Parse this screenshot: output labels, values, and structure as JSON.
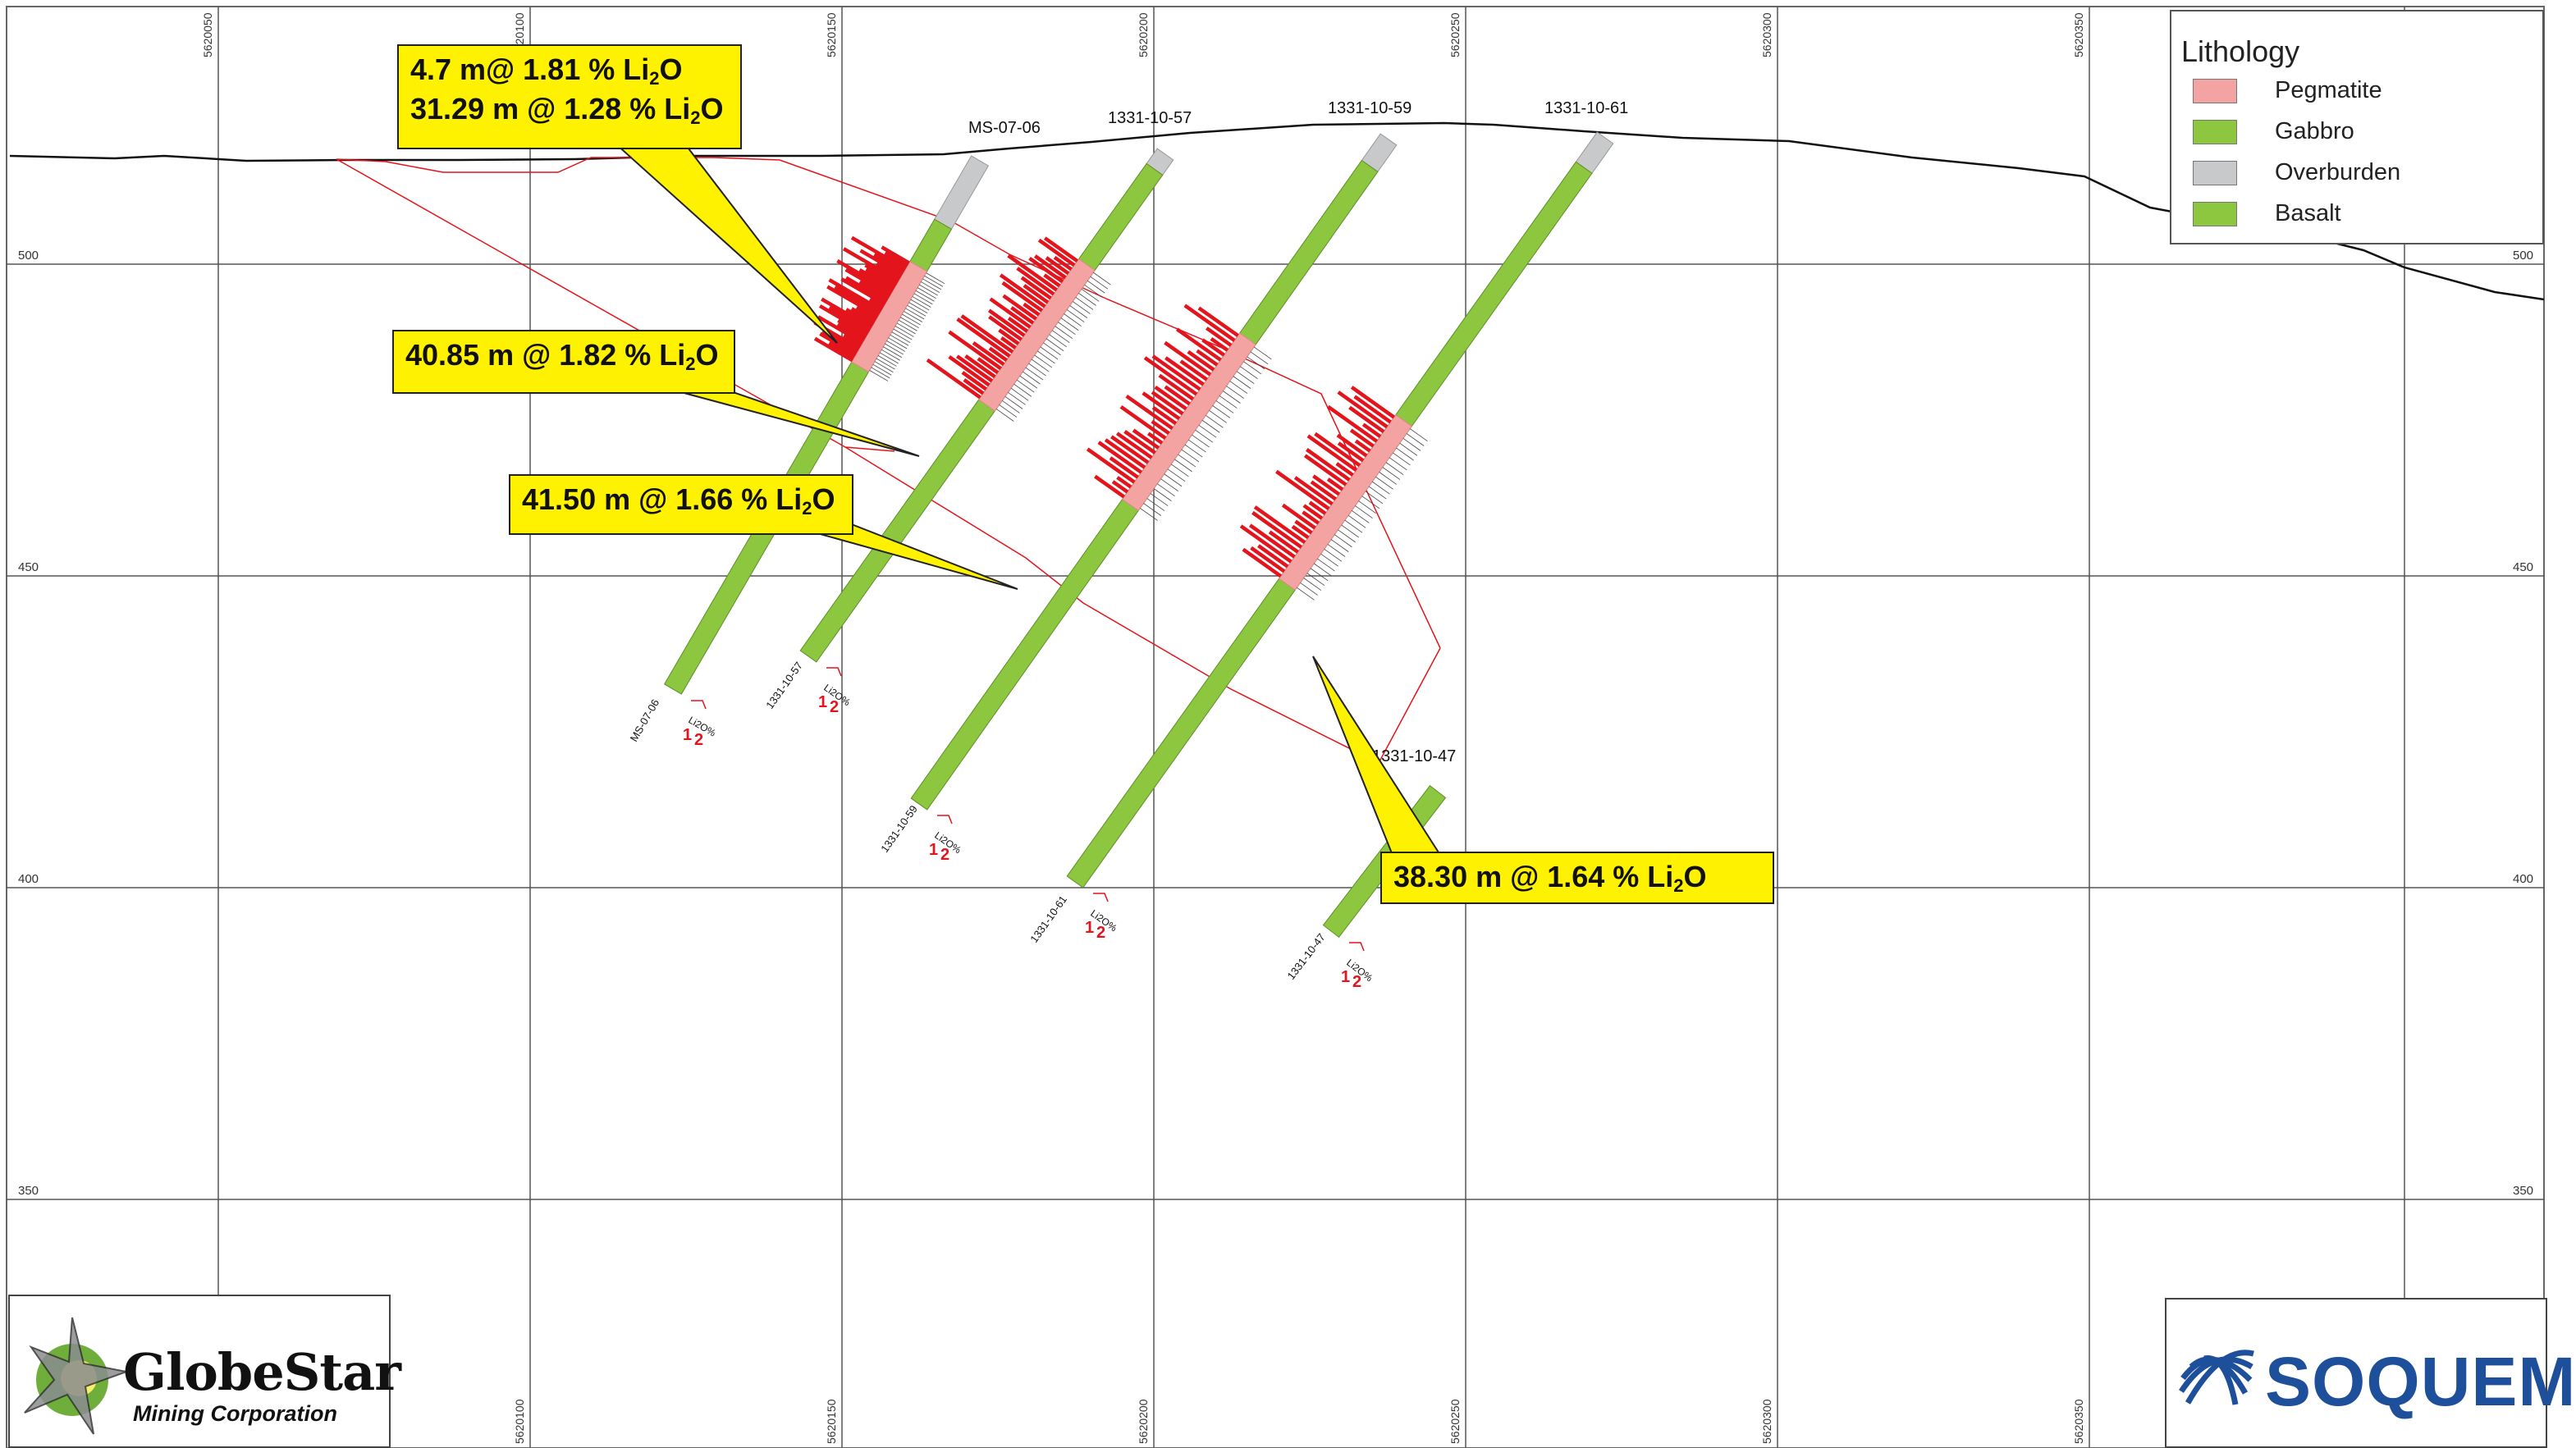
{
  "map": {
    "easting_labels": [
      "5620050",
      "5620100",
      "5620150",
      "5620200",
      "5620250",
      "5620300",
      "5620350"
    ],
    "bottom_easting_labels": [
      "5620100",
      "5620150",
      "5620200",
      "5620250",
      "5620300",
      "5620350"
    ],
    "elevation_labels": [
      "500",
      "450",
      "400",
      "350"
    ],
    "grade_axis_label": "Li2O%",
    "grade_axis_ticks": [
      "1",
      "2"
    ]
  },
  "drillholes": [
    {
      "id": "MS-07-06",
      "collar_label": "MS-07-06",
      "toe_label": "MS-07-06"
    },
    {
      "id": "1331-10-57",
      "collar_label": "1331-10-57",
      "toe_label": "1331-10-57"
    },
    {
      "id": "1331-10-59",
      "collar_label": "1331-10-59",
      "toe_label": "1331-10-59"
    },
    {
      "id": "1331-10-61",
      "collar_label": "1331-10-61",
      "toe_label": "1331-10-61"
    },
    {
      "id": "1331-10-47",
      "collar_label": "1331-10-47",
      "toe_label": "1331-10-47"
    }
  ],
  "callouts": [
    {
      "line1_prefix": "4.7  m@ 1.81 % Li",
      "line1_sub": "2",
      "line1_suffix": "O",
      "line2_prefix": "31.29 m @ 1.28 % Li",
      "line2_sub": "2",
      "line2_suffix": "O"
    },
    {
      "prefix": "40.85 m  @ 1.82 % Li",
      "sub": "2",
      "suffix": "O"
    },
    {
      "prefix": "41.50 m  @ 1.66 % Li",
      "sub": "2",
      "suffix": "O"
    },
    {
      "prefix": "38.30 m  @ 1.64 % Li",
      "sub": "2",
      "suffix": "O"
    }
  ],
  "legend": {
    "title": "Lithology",
    "items": [
      {
        "label": "Pegmatite",
        "color": "#f4a3a3"
      },
      {
        "label": "Gabbro",
        "color": "#8dc63f"
      },
      {
        "label": "Overburden",
        "color": "#c8c9cb"
      },
      {
        "label": "Basalt",
        "color": "#8dc63f"
      }
    ]
  },
  "logos": {
    "globestar_name": "GlobeStar",
    "globestar_sub": "Mining Corporation",
    "soquem_name": "SOQUEM"
  },
  "colors": {
    "grid": "#555555",
    "pegmatite": "#f4a3a3",
    "gabbro": "#8dc63f",
    "overburden": "#c8c9cb",
    "assay_bar": "#e3141b",
    "envelope": "#e3141b",
    "callout": "#fff200"
  }
}
